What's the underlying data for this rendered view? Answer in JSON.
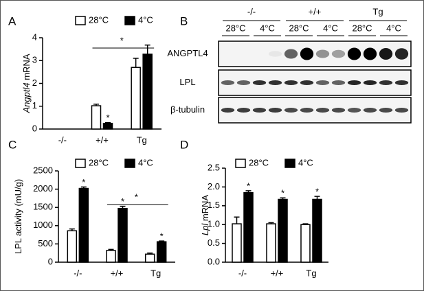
{
  "chart_data": [
    {
      "type": "bar",
      "panel": "A",
      "ylabel": {
        "italic": "Angptl4",
        "text": "mRNA"
      },
      "categories": [
        "-/-",
        "+/+",
        "Tg"
      ],
      "series": [
        {
          "name": "28°C",
          "color": "#ffffff",
          "values": [
            null,
            1.02,
            2.7
          ],
          "errors": [
            null,
            0.07,
            0.4
          ],
          "stars": [
            null,
            null,
            null
          ]
        },
        {
          "name": "4°C",
          "color": "#000000",
          "values": [
            null,
            0.25,
            3.28
          ],
          "errors": [
            null,
            0.03,
            0.4
          ],
          "stars": [
            null,
            "*",
            null
          ]
        }
      ],
      "ylim": [
        0,
        4
      ],
      "yticks": [
        0,
        1,
        2,
        3,
        4
      ],
      "bracket": {
        "text": "*",
        "categories": [
          1,
          2
        ]
      }
    },
    {
      "type": "bar",
      "panel": "C",
      "ylabel": {
        "text": "LPL activity (mU/g)"
      },
      "categories": [
        "-/-",
        "+/+",
        "Tg"
      ],
      "series": [
        {
          "name": "28°C",
          "color": "#ffffff",
          "values": [
            860,
            320,
            220
          ],
          "errors": [
            50,
            30,
            30
          ],
          "stars": [
            null,
            null,
            null
          ]
        },
        {
          "name": "4°C",
          "color": "#000000",
          "values": [
            2020,
            1470,
            560
          ],
          "errors": [
            40,
            60,
            20
          ],
          "stars": [
            "*",
            "*",
            "*"
          ]
        }
      ],
      "ylim": [
        0,
        2500
      ],
      "yticks": [
        0,
        500,
        1000,
        1500,
        2000,
        2500
      ],
      "bracket": {
        "text": "*",
        "categories": [
          1,
          2
        ]
      }
    },
    {
      "type": "bar",
      "panel": "D",
      "ylabel": {
        "italic": "Lpl",
        "text": "mRNA"
      },
      "categories": [
        "-/-",
        "+/+",
        "Tg"
      ],
      "series": [
        {
          "name": "28°C",
          "color": "#ffffff",
          "values": [
            1.02,
            1.02,
            1.0
          ],
          "errors": [
            0.18,
            0.03,
            0.02
          ],
          "stars": [
            null,
            null,
            null
          ]
        },
        {
          "name": "4°C",
          "color": "#000000",
          "values": [
            1.85,
            1.67,
            1.67
          ],
          "errors": [
            0.05,
            0.04,
            0.08
          ],
          "stars": [
            "*",
            "*",
            "*"
          ]
        }
      ],
      "ylim": [
        0,
        2.5
      ],
      "yticks": [
        {
          "value": 0,
          "label": "0.0"
        },
        {
          "value": 0.5,
          "label": "0.5"
        },
        {
          "value": 1,
          "label": "1.0"
        },
        {
          "value": 1.5,
          "label": "1.5"
        },
        {
          "value": 2,
          "label": "2.0"
        },
        {
          "value": 2.5,
          "label": "2.5"
        }
      ]
    }
  ],
  "blot": {
    "panel": "B",
    "groups": [
      "-/-",
      "+/+",
      "Tg"
    ],
    "conditions": [
      "28°C",
      "4°C"
    ],
    "rows": [
      "ANGPTL4",
      "LPL",
      "β-tubulin"
    ]
  }
}
